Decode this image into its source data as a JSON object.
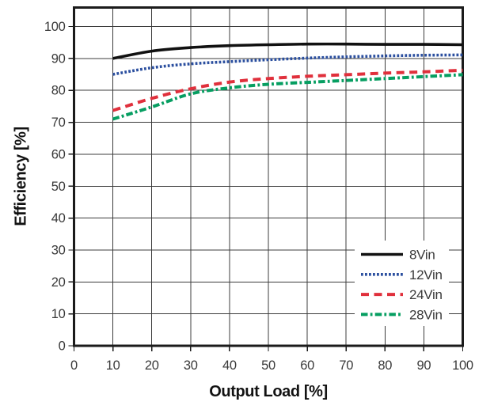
{
  "figure": {
    "background": "#ffffff",
    "frame_color": "#1b1b1b",
    "grid_color": "#3c3c3c",
    "tick_label_color": "#3a3a3a",
    "legend_label_color": "#2f2f2f"
  },
  "chart_data": {
    "type": "line",
    "title": "",
    "xlabel": "Output Load [%]",
    "ylabel": "Efficiency [%]",
    "xlim": [
      0,
      100
    ],
    "ylim": [
      0,
      106
    ],
    "grid": true,
    "legend_position": "lower right",
    "xticks": [
      0,
      10,
      20,
      30,
      40,
      50,
      60,
      70,
      80,
      90,
      100
    ],
    "yticks": [
      0,
      10,
      20,
      30,
      40,
      50,
      60,
      70,
      80,
      90,
      100
    ],
    "x": [
      10,
      20,
      30,
      40,
      50,
      60,
      70,
      80,
      90,
      100
    ],
    "series": [
      {
        "name": "8Vin",
        "color": "#111111",
        "style": "solid",
        "width": 3.6,
        "values": [
          90.0,
          92.3,
          93.4,
          94.0,
          94.3,
          94.5,
          94.5,
          94.4,
          94.4,
          94.3
        ]
      },
      {
        "name": "12Vin",
        "color": "#2b4f9f",
        "style": "dotted",
        "width": 3.6,
        "values": [
          85.0,
          87.1,
          88.3,
          89.0,
          89.6,
          90.1,
          90.5,
          90.8,
          91.0,
          91.1
        ]
      },
      {
        "name": "24Vin",
        "color": "#e0303c",
        "style": "dashed",
        "width": 4.0,
        "values": [
          73.7,
          77.5,
          80.5,
          82.6,
          83.7,
          84.4,
          84.9,
          85.4,
          85.8,
          86.3
        ]
      },
      {
        "name": "28Vin",
        "color": "#069e61",
        "style": "dashdot",
        "width": 4.0,
        "values": [
          71.0,
          74.8,
          78.9,
          80.8,
          81.9,
          82.5,
          83.1,
          83.7,
          84.3,
          84.9
        ]
      }
    ]
  }
}
